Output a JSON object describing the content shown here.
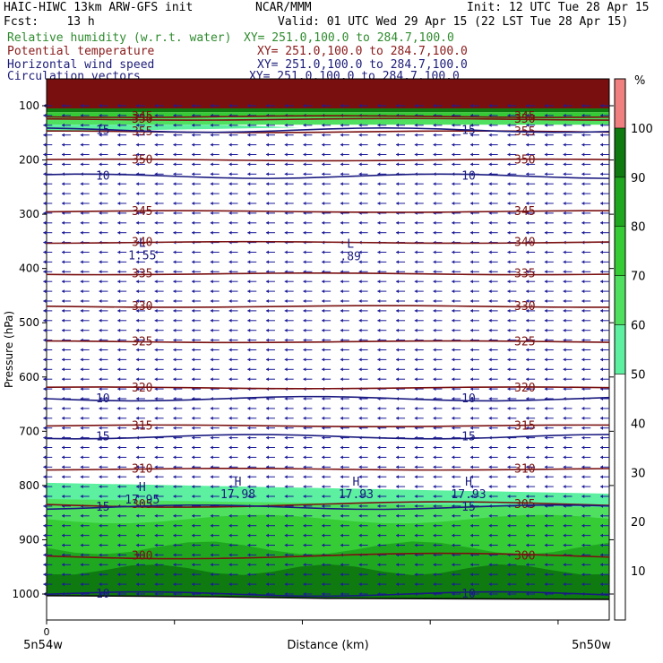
{
  "header": {
    "line1_left": "HAIC-HIWC 13km ARW-GFS init",
    "line1_mid": "NCAR/MMM",
    "line1_right": "Init: 12 UTC Tue 28 Apr 15",
    "line2_left": "Fcst:    13 h",
    "line2_right": "Valid: 01 UTC Wed 29 Apr 15 (22 LST Tue 28 Apr 15)",
    "fields": [
      {
        "name": "Relative humidity (w.r.t. water)",
        "xy": "XY= 251.0,100.0 to 284.7,100.0",
        "color": "#2e8b2e"
      },
      {
        "name": "Potential temperature",
        "xy": "XY= 251.0,100.0 to 284.7,100.0",
        "color": "#8b1a1a"
      },
      {
        "name": "Horizontal wind speed",
        "xy": "XY= 251.0,100.0 to 284.7,100.0",
        "color": "#1c1c7a"
      },
      {
        "name": "Circulation vectors",
        "xy": "XY= 251.0,100.0 to 284.7,100.0",
        "color": "#1c1c7a"
      }
    ]
  },
  "chart_data": {
    "type": "cross-section",
    "ylabel": "Pressure (hPa)",
    "xlabel": "Distance (km)",
    "x_tick_label": "0",
    "x_left_label": "5n54w",
    "x_right_label": "5n50w",
    "y_ticks": [
      100,
      200,
      300,
      400,
      500,
      600,
      700,
      800,
      900,
      1000
    ],
    "ylim": [
      1050,
      70
    ],
    "xlim": [
      0,
      100
    ],
    "colorbar": {
      "unit": "%",
      "ticks": [
        10,
        20,
        30,
        40,
        50,
        60,
        70,
        80,
        90,
        100
      ],
      "bands": [
        {
          "from": 0,
          "to": 50,
          "color": "#ffffff"
        },
        {
          "from": 50,
          "to": 60,
          "color": "#5cf0a0"
        },
        {
          "from": 60,
          "to": 70,
          "color": "#50e060"
        },
        {
          "from": 70,
          "to": 80,
          "color": "#35cc35"
        },
        {
          "from": 80,
          "to": 90,
          "color": "#1fa81f"
        },
        {
          "from": 90,
          "to": 100,
          "color": "#0f7a0f"
        },
        {
          "from": 100,
          "to": 110,
          "color": "#f08080"
        }
      ]
    },
    "theta_contours": [
      {
        "value": "300",
        "p": 930
      },
      {
        "value": "305",
        "p": 835
      },
      {
        "value": "310",
        "p": 770
      },
      {
        "value": "315",
        "p": 690
      },
      {
        "value": "320",
        "p": 620
      },
      {
        "value": "325",
        "p": 535
      },
      {
        "value": "330",
        "p": 470
      },
      {
        "value": "335",
        "p": 410
      },
      {
        "value": "340",
        "p": 352
      },
      {
        "value": "345",
        "p": 295
      },
      {
        "value": "350",
        "p": 200
      },
      {
        "value": "355",
        "p": 148
      },
      {
        "value": "350",
        "p": 125
      },
      {
        "value": "345",
        "p": 120
      }
    ],
    "wind_contours": [
      {
        "value": "10",
        "p": 640
      },
      {
        "value": "15",
        "p": 710
      },
      {
        "value": "15",
        "p": 840
      },
      {
        "value": "10",
        "p": 1000
      },
      {
        "value": "10",
        "p": 230
      },
      {
        "value": "15",
        "p": 145
      }
    ],
    "extrema": [
      {
        "kind": "L",
        "value": "1.55",
        "x": 17,
        "p": 360
      },
      {
        "kind": "L",
        "value": ".89",
        "x": 54,
        "p": 362
      },
      {
        "kind": "H",
        "value": "17.95",
        "x": 17,
        "p": 810
      },
      {
        "kind": "H",
        "value": "17.98",
        "x": 34,
        "p": 800
      },
      {
        "kind": "H",
        "value": "17.93",
        "x": 55,
        "p": 800
      },
      {
        "kind": "H",
        "value": "17.93",
        "x": 75,
        "p": 800
      }
    ]
  }
}
